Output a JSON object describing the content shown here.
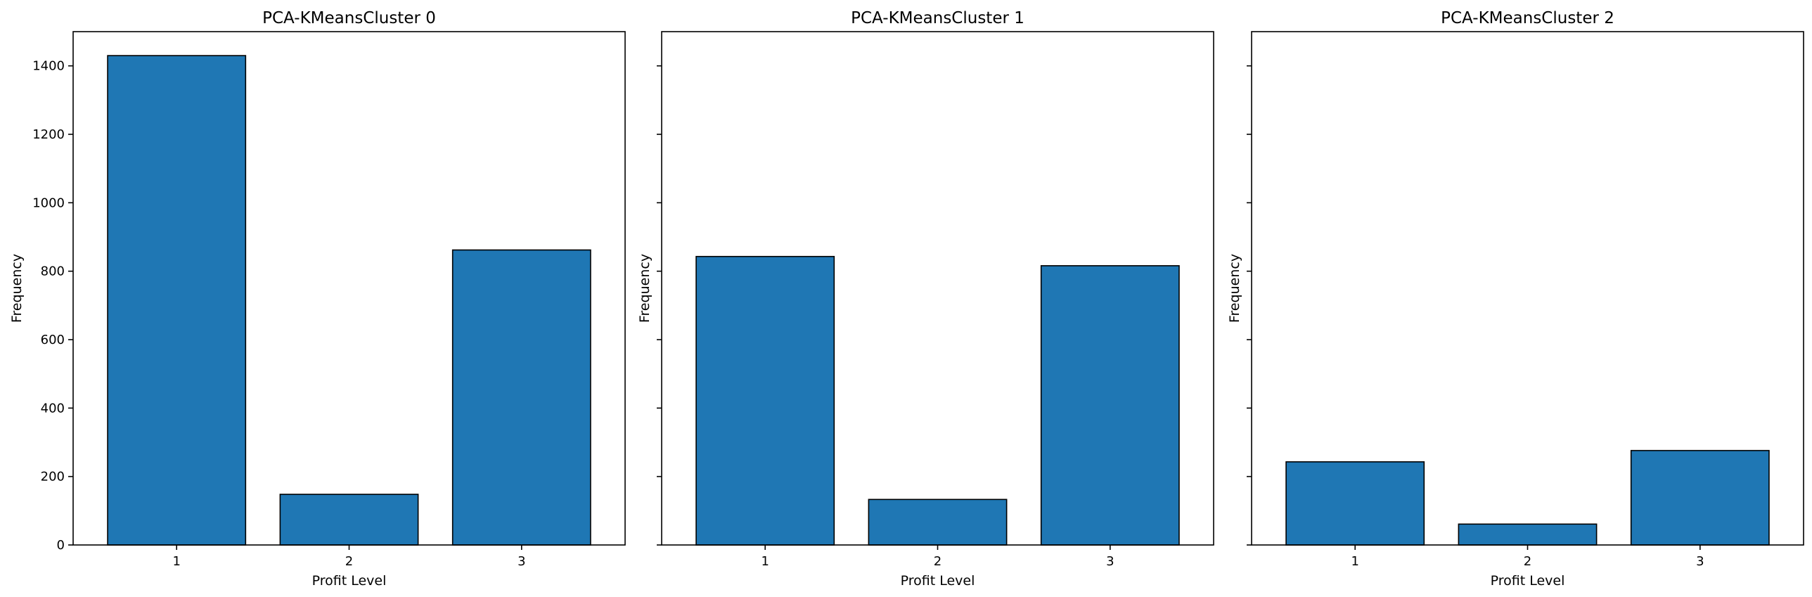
{
  "chart_data": [
    {
      "type": "bar",
      "title": "PCA-KMeansCluster 0",
      "xlabel": "Profit Level",
      "ylabel": "Frequency",
      "categories": [
        "1",
        "2",
        "3"
      ],
      "values": [
        1430,
        148,
        862
      ],
      "ylim": [
        0,
        1500
      ],
      "yticks": [
        0,
        200,
        400,
        600,
        800,
        1000,
        1200,
        1400
      ],
      "show_ytick_labels": true,
      "bar_color": "#1f77b4",
      "edge_color": "#000000",
      "grid": false
    },
    {
      "type": "bar",
      "title": "PCA-KMeansCluster 1",
      "xlabel": "Profit Level",
      "ylabel": "Frequency",
      "categories": [
        "1",
        "2",
        "3"
      ],
      "values": [
        843,
        133,
        816
      ],
      "ylim": [
        0,
        1500
      ],
      "yticks": [
        0,
        200,
        400,
        600,
        800,
        1000,
        1200,
        1400
      ],
      "show_ytick_labels": false,
      "bar_color": "#1f77b4",
      "edge_color": "#000000",
      "grid": false
    },
    {
      "type": "bar",
      "title": "PCA-KMeansCluster 2",
      "xlabel": "Profit Level",
      "ylabel": "Frequency",
      "categories": [
        "1",
        "2",
        "3"
      ],
      "values": [
        243,
        61,
        276
      ],
      "ylim": [
        0,
        1500
      ],
      "yticks": [
        0,
        200,
        400,
        600,
        800,
        1000,
        1200,
        1400
      ],
      "show_ytick_labels": false,
      "bar_color": "#1f77b4",
      "edge_color": "#000000",
      "grid": false
    }
  ]
}
